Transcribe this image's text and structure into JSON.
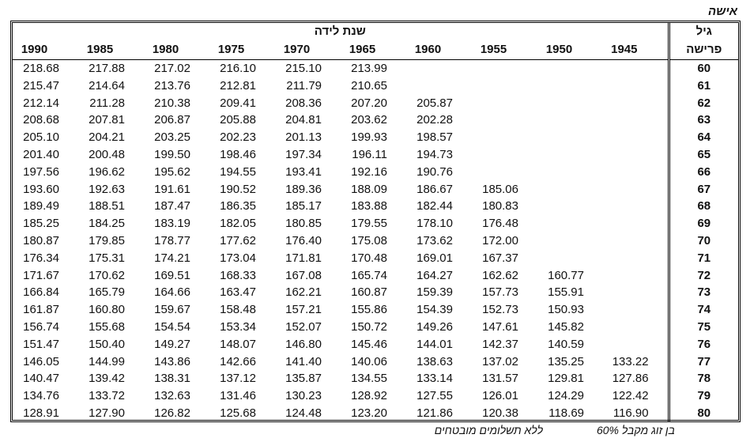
{
  "title": "אישה",
  "table": {
    "birth_year_header": "שנת לידה",
    "age_header": [
      "גיל",
      "פרישה"
    ],
    "years": [
      "1990",
      "1985",
      "1980",
      "1975",
      "1970",
      "1965",
      "1960",
      "1955",
      "1950",
      "1945"
    ],
    "rows": [
      {
        "age": "60",
        "values": [
          "218.68",
          "217.88",
          "217.02",
          "216.10",
          "215.10",
          "213.99",
          null,
          null,
          null,
          null
        ]
      },
      {
        "age": "61",
        "values": [
          "215.47",
          "214.64",
          "213.76",
          "212.81",
          "211.79",
          "210.65",
          null,
          null,
          null,
          null
        ]
      },
      {
        "age": "62",
        "values": [
          "212.14",
          "211.28",
          "210.38",
          "209.41",
          "208.36",
          "207.20",
          "205.87",
          null,
          null,
          null
        ]
      },
      {
        "age": "63",
        "values": [
          "208.68",
          "207.81",
          "206.87",
          "205.88",
          "204.81",
          "203.62",
          "202.28",
          null,
          null,
          null
        ]
      },
      {
        "age": "64",
        "values": [
          "205.10",
          "204.21",
          "203.25",
          "202.23",
          "201.13",
          "199.93",
          "198.57",
          null,
          null,
          null
        ]
      },
      {
        "age": "65",
        "values": [
          "201.40",
          "200.48",
          "199.50",
          "198.46",
          "197.34",
          "196.11",
          "194.73",
          null,
          null,
          null
        ]
      },
      {
        "age": "66",
        "values": [
          "197.56",
          "196.62",
          "195.62",
          "194.55",
          "193.41",
          "192.16",
          "190.76",
          null,
          null,
          null
        ]
      },
      {
        "age": "67",
        "values": [
          "193.60",
          "192.63",
          "191.61",
          "190.52",
          "189.36",
          "188.09",
          "186.67",
          "185.06",
          null,
          null
        ]
      },
      {
        "age": "68",
        "values": [
          "189.49",
          "188.51",
          "187.47",
          "186.35",
          "185.17",
          "183.88",
          "182.44",
          "180.83",
          null,
          null
        ]
      },
      {
        "age": "69",
        "values": [
          "185.25",
          "184.25",
          "183.19",
          "182.05",
          "180.85",
          "179.55",
          "178.10",
          "176.48",
          null,
          null
        ]
      },
      {
        "age": "70",
        "values": [
          "180.87",
          "179.85",
          "178.77",
          "177.62",
          "176.40",
          "175.08",
          "173.62",
          "172.00",
          null,
          null
        ]
      },
      {
        "age": "71",
        "values": [
          "176.34",
          "175.31",
          "174.21",
          "173.04",
          "171.81",
          "170.48",
          "169.01",
          "167.37",
          null,
          null
        ]
      },
      {
        "age": "72",
        "values": [
          "171.67",
          "170.62",
          "169.51",
          "168.33",
          "167.08",
          "165.74",
          "164.27",
          "162.62",
          "160.77",
          null
        ]
      },
      {
        "age": "73",
        "values": [
          "166.84",
          "165.79",
          "164.66",
          "163.47",
          "162.21",
          "160.87",
          "159.39",
          "157.73",
          "155.91",
          null
        ]
      },
      {
        "age": "74",
        "values": [
          "161.87",
          "160.80",
          "159.67",
          "158.48",
          "157.21",
          "155.86",
          "154.39",
          "152.73",
          "150.93",
          null
        ]
      },
      {
        "age": "75",
        "values": [
          "156.74",
          "155.68",
          "154.54",
          "153.34",
          "152.07",
          "150.72",
          "149.26",
          "147.61",
          "145.82",
          null
        ]
      },
      {
        "age": "76",
        "values": [
          "151.47",
          "150.40",
          "149.27",
          "148.07",
          "146.80",
          "145.46",
          "144.01",
          "142.37",
          "140.59",
          null
        ]
      },
      {
        "age": "77",
        "values": [
          "146.05",
          "144.99",
          "143.86",
          "142.66",
          "141.40",
          "140.06",
          "138.63",
          "137.02",
          "135.25",
          "133.22"
        ]
      },
      {
        "age": "78",
        "values": [
          "140.47",
          "139.42",
          "138.31",
          "137.12",
          "135.87",
          "134.55",
          "133.14",
          "131.57",
          "129.81",
          "127.86"
        ]
      },
      {
        "age": "79",
        "values": [
          "134.76",
          "133.72",
          "132.63",
          "131.46",
          "130.23",
          "128.92",
          "127.55",
          "126.01",
          "124.29",
          "122.42"
        ]
      },
      {
        "age": "80",
        "values": [
          "128.91",
          "127.90",
          "126.82",
          "125.68",
          "124.48",
          "123.20",
          "121.86",
          "120.38",
          "118.69",
          "116.90"
        ]
      }
    ]
  },
  "footer": {
    "spouse": "בן זוג מקבל 60%",
    "guarantee": "ללא תשלומים מובטחים"
  }
}
